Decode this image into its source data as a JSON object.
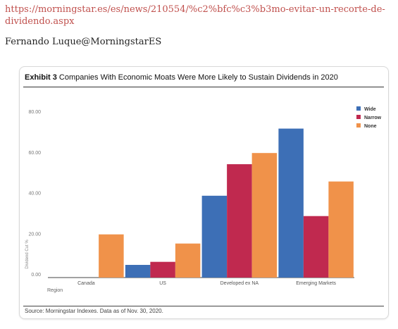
{
  "page": {
    "url": "https://morningstar.es/es/news/210554/%c2%bfc%c3%b3mo-evitar-un-recorte-de-dividendo.aspx",
    "author": "Fernando Luque@MorningstarES"
  },
  "exhibit": {
    "label": "Exhibit 3",
    "title": "Companies With Economic Moats Were More Likely to Sustain Dividends in 2020",
    "source": "Source: Morningstar Indexes. Data as of Nov. 30, 2020."
  },
  "chart_data": {
    "type": "bar",
    "title": "Companies With Economic Moats Were More Likely to Sustain Dividends in 2020",
    "xlabel": "Region",
    "ylabel": "Dividend Cut %",
    "ylim": [
      0,
      80
    ],
    "yticks": [
      "0.00",
      "20.00",
      "40.00",
      "60.00",
      "80.00"
    ],
    "categories": [
      "Canada",
      "US",
      "Developed ex NA",
      "Emerging Markets"
    ],
    "series": [
      {
        "name": "Wide",
        "color": "#3d6fb6",
        "values": [
          0,
          4.5,
          38.5,
          71.5
        ]
      },
      {
        "name": "Narrow",
        "color": "#c0294f",
        "values": [
          0,
          6,
          54,
          28.5
        ]
      },
      {
        "name": "None",
        "color": "#f0924a",
        "values": [
          19.5,
          15,
          59.5,
          45.5
        ]
      }
    ],
    "legend": "top-right",
    "grid": false
  }
}
